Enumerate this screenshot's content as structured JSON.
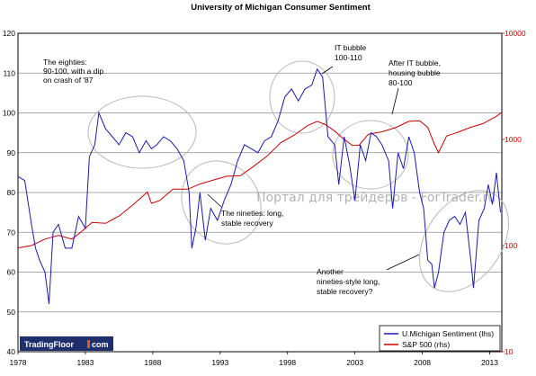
{
  "chart_data": {
    "type": "line",
    "title": "University of Michigan Consumer Sentiment",
    "x_ticks": [
      "1978",
      "1983",
      "1988",
      "1993",
      "1998",
      "2003",
      "2008",
      "2013"
    ],
    "xlim": [
      1978,
      2013.9
    ],
    "y_left": {
      "ticks": [
        "40",
        "50",
        "60",
        "70",
        "80",
        "90",
        "100",
        "110",
        "120"
      ],
      "lim": [
        40,
        120
      ]
    },
    "y_right": {
      "scale": "log",
      "ticks": [
        "10",
        "100",
        "1000",
        "10000"
      ],
      "lim": [
        10,
        10000
      ],
      "color": "#cc0000"
    },
    "grid": "horizontal",
    "legend": {
      "position": "bottom-right"
    },
    "series": [
      {
        "name": "U.Michigan Sentiment (lhs)",
        "axis": "left",
        "color": "#1a1ab4",
        "x": [
          1978.0,
          1978.5,
          1979.0,
          1979.3,
          1979.6,
          1980.0,
          1980.3,
          1980.6,
          1981.0,
          1981.5,
          1982.0,
          1982.5,
          1983.0,
          1983.3,
          1983.7,
          1984.0,
          1984.5,
          1985.0,
          1985.5,
          1986.0,
          1986.5,
          1987.0,
          1987.5,
          1987.9,
          1988.3,
          1988.8,
          1989.3,
          1989.8,
          1990.3,
          1990.7,
          1990.9,
          1991.2,
          1991.5,
          1991.9,
          1992.3,
          1992.8,
          1993.3,
          1993.8,
          1994.3,
          1994.8,
          1995.3,
          1995.8,
          1996.3,
          1996.8,
          1997.3,
          1997.8,
          1998.3,
          1998.8,
          1999.3,
          1999.8,
          2000.2,
          2000.6,
          2001.0,
          2001.5,
          2001.8,
          2002.2,
          2002.6,
          2003.0,
          2003.4,
          2003.8,
          2004.2,
          2004.6,
          2005.0,
          2005.5,
          2005.8,
          2006.2,
          2006.6,
          2007.0,
          2007.4,
          2007.8,
          2008.1,
          2008.4,
          2008.7,
          2008.9,
          2009.2,
          2009.6,
          2010.0,
          2010.4,
          2010.8,
          2011.2,
          2011.6,
          2011.8,
          2012.2,
          2012.6,
          2012.9,
          2013.2,
          2013.5,
          2013.8
        ],
        "values": [
          84,
          83,
          72,
          66,
          63,
          60,
          52,
          70,
          72,
          66,
          66,
          74,
          71,
          89,
          92,
          100,
          96,
          94,
          92,
          95,
          94,
          90,
          93,
          91,
          92,
          94,
          93,
          91,
          88,
          80,
          66,
          71,
          80,
          68,
          76,
          73,
          78,
          82,
          88,
          92,
          91,
          90,
          93,
          94,
          98,
          104,
          106,
          103,
          106,
          107,
          111,
          109,
          94,
          92,
          82,
          94,
          87,
          78,
          92,
          88,
          95,
          94,
          92,
          88,
          76,
          90,
          86,
          94,
          90,
          80,
          76,
          63,
          62,
          56,
          60,
          70,
          73,
          74,
          72,
          75,
          63,
          56,
          73,
          76,
          82,
          77,
          85,
          75
        ]
      },
      {
        "name": "S&P 500 (rhs)",
        "axis": "right",
        "color": "#cc0000",
        "x": [
          1978.0,
          1979.0,
          1980.0,
          1981.0,
          1982.0,
          1982.7,
          1983.5,
          1984.5,
          1985.5,
          1986.5,
          1987.6,
          1987.9,
          1988.5,
          1989.5,
          1990.6,
          1991.5,
          1992.5,
          1993.5,
          1994.5,
          1995.5,
          1996.5,
          1997.5,
          1998.5,
          1999.5,
          2000.2,
          2000.8,
          2001.5,
          2002.0,
          2002.8,
          2003.3,
          2004.0,
          2005.0,
          2006.0,
          2007.0,
          2007.8,
          2008.4,
          2008.9,
          2009.2,
          2009.8,
          2010.5,
          2011.5,
          2012.5,
          2013.5,
          2013.9
        ],
        "values": [
          95,
          100,
          115,
          125,
          115,
          135,
          165,
          162,
          190,
          240,
          320,
          250,
          265,
          340,
          340,
          380,
          415,
          450,
          455,
          560,
          700,
          930,
          1100,
          1350,
          1480,
          1380,
          1200,
          1050,
          880,
          880,
          1120,
          1180,
          1290,
          1480,
          1500,
          1300,
          900,
          750,
          1080,
          1150,
          1290,
          1410,
          1650,
          1800
        ]
      }
    ],
    "annotations": [
      [
        "The eighties:",
        "90-100, with a dip",
        "on crash of '87"
      ],
      [
        "IT bubble",
        "100-110"
      ],
      [
        "After IT bubble,",
        "housing bubble",
        "80-100"
      ],
      [
        "The nineties: long,",
        "stable recovery"
      ],
      [
        "Another",
        "nineties-style long,",
        "stable recovery?"
      ]
    ],
    "watermark": "Портал для трейдеров - ForTrader.ru",
    "brand": {
      "left": "TradingFloor",
      "right": "com"
    }
  }
}
